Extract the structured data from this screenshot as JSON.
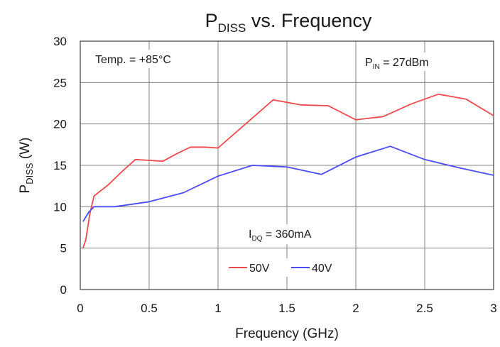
{
  "chart_data": {
    "type": "line",
    "title": {
      "main": "P",
      "sub": "DISS",
      "rest": " vs. Frequency"
    },
    "xlabel": "Frequency (GHz)",
    "ylabel": {
      "main": "P",
      "sub": "DISS",
      "rest": " (W)"
    },
    "xlim": [
      0,
      3
    ],
    "ylim": [
      0,
      30
    ],
    "x_ticks": [
      "0",
      "0.5",
      "1",
      "1.5",
      "2",
      "2.5",
      "3"
    ],
    "y_ticks": [
      "0",
      "5",
      "10",
      "15",
      "20",
      "25",
      "30"
    ],
    "grid": true,
    "annotations": {
      "temp": "Temp. = +85°C",
      "pin": {
        "main": "P",
        "sub": "IN",
        "rest": " = 27dBm"
      },
      "idq": {
        "main": "I",
        "sub": "DQ",
        "rest": " = 360mA"
      }
    },
    "legend_position": "bottom-center",
    "series": [
      {
        "name": "50V",
        "color": "#ee4a4e",
        "points": [
          [
            0.02,
            5.0
          ],
          [
            0.04,
            6.0
          ],
          [
            0.07,
            9.2
          ],
          [
            0.1,
            11.3
          ],
          [
            0.2,
            12.6
          ],
          [
            0.3,
            14.2
          ],
          [
            0.4,
            15.7
          ],
          [
            0.5,
            15.6
          ],
          [
            0.6,
            15.5
          ],
          [
            0.7,
            16.4
          ],
          [
            0.8,
            17.2
          ],
          [
            0.9,
            17.2
          ],
          [
            1.0,
            17.1
          ],
          [
            1.2,
            20.0
          ],
          [
            1.4,
            22.9
          ],
          [
            1.6,
            22.3
          ],
          [
            1.8,
            22.2
          ],
          [
            2.0,
            20.5
          ],
          [
            2.2,
            20.9
          ],
          [
            2.4,
            22.4
          ],
          [
            2.6,
            23.6
          ],
          [
            2.8,
            23.0
          ],
          [
            3.0,
            21.0
          ]
        ]
      },
      {
        "name": "40V",
        "color": "#4b4bf5",
        "points": [
          [
            0.02,
            8.2
          ],
          [
            0.06,
            9.3
          ],
          [
            0.1,
            10.0
          ],
          [
            0.25,
            10.0
          ],
          [
            0.5,
            10.6
          ],
          [
            0.75,
            11.7
          ],
          [
            1.0,
            13.7
          ],
          [
            1.25,
            15.0
          ],
          [
            1.5,
            14.8
          ],
          [
            1.75,
            13.9
          ],
          [
            2.0,
            16.0
          ],
          [
            2.25,
            17.3
          ],
          [
            2.5,
            15.7
          ],
          [
            2.75,
            14.7
          ],
          [
            3.0,
            13.8
          ]
        ]
      }
    ]
  }
}
